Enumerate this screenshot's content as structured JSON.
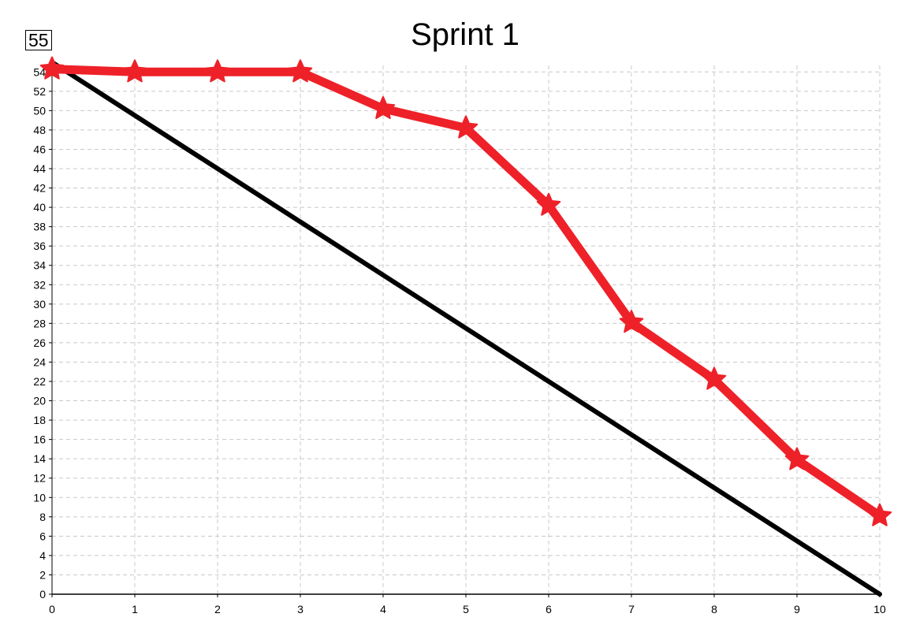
{
  "badge": "55",
  "chart_data": {
    "type": "line",
    "title": "Sprint 1",
    "xlabel": "",
    "ylabel": "",
    "x": [
      0,
      1,
      2,
      3,
      4,
      5,
      6,
      7,
      8,
      9,
      10
    ],
    "xlim": [
      0,
      10
    ],
    "ylim": [
      0,
      55
    ],
    "xticks": [
      0,
      1,
      2,
      3,
      4,
      5,
      6,
      7,
      8,
      9,
      10
    ],
    "yticks": [
      0,
      2,
      4,
      6,
      8,
      10,
      12,
      14,
      16,
      18,
      20,
      22,
      24,
      26,
      28,
      30,
      32,
      34,
      36,
      38,
      40,
      42,
      44,
      46,
      48,
      50,
      52,
      54
    ],
    "grid": true,
    "series": [
      {
        "key": "ideal",
        "x": [
          0,
          10
        ],
        "values": [
          55,
          0
        ],
        "color": "#000000",
        "marker": "none"
      },
      {
        "key": "actual",
        "x": [
          0,
          1,
          2,
          3,
          4,
          5,
          6,
          7,
          8,
          9,
          10
        ],
        "values": [
          54.3,
          54,
          54,
          54,
          50.2,
          48.2,
          40.2,
          28.1,
          22.2,
          13.9,
          8.1
        ],
        "color": "#ee2129",
        "marker": "star"
      }
    ]
  }
}
